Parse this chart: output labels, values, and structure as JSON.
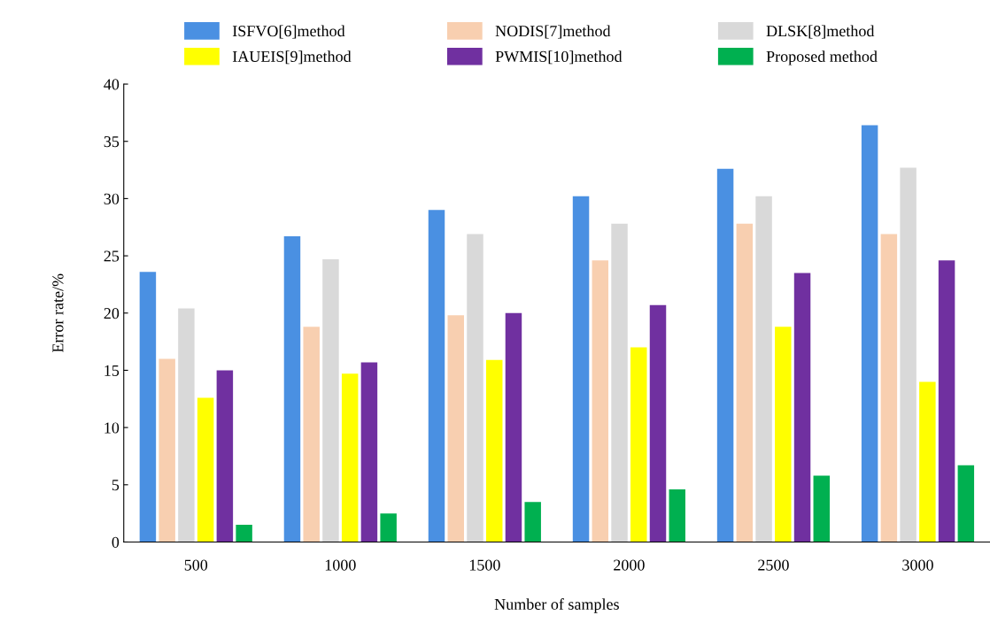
{
  "chart_data": {
    "type": "bar",
    "xlabel": "Number of samples",
    "ylabel": "Error rate/%",
    "categories": [
      "500",
      "1000",
      "1500",
      "2000",
      "2500",
      "3000"
    ],
    "series": [
      {
        "name": "ISFVO[6]method",
        "color": "#4a90e2",
        "values": [
          23.6,
          26.7,
          29.0,
          30.2,
          32.6,
          36.4
        ]
      },
      {
        "name": "NODIS[7]method",
        "color": "#f8cfb0",
        "values": [
          16.0,
          18.8,
          19.8,
          24.6,
          27.8,
          26.9
        ]
      },
      {
        "name": "DLSK[8]method",
        "color": "#d9d9d9",
        "values": [
          20.4,
          24.7,
          26.9,
          27.8,
          30.2,
          32.7
        ]
      },
      {
        "name": "IAUEIS[9]method",
        "color": "#ffff00",
        "values": [
          12.6,
          14.7,
          15.9,
          17.0,
          18.8,
          14.0
        ]
      },
      {
        "name": "PWMIS[10]method",
        "color": "#7030a0",
        "values": [
          15.0,
          15.7,
          20.0,
          20.7,
          23.5,
          24.6
        ]
      },
      {
        "name": "Proposed method",
        "color": "#00b050",
        "values": [
          1.5,
          2.5,
          3.5,
          4.6,
          5.8,
          6.7
        ]
      }
    ],
    "ylim": [
      0,
      40
    ],
    "yticks": [
      0,
      5,
      10,
      15,
      20,
      25,
      30,
      35,
      40
    ],
    "grid": false,
    "legend": "top"
  }
}
